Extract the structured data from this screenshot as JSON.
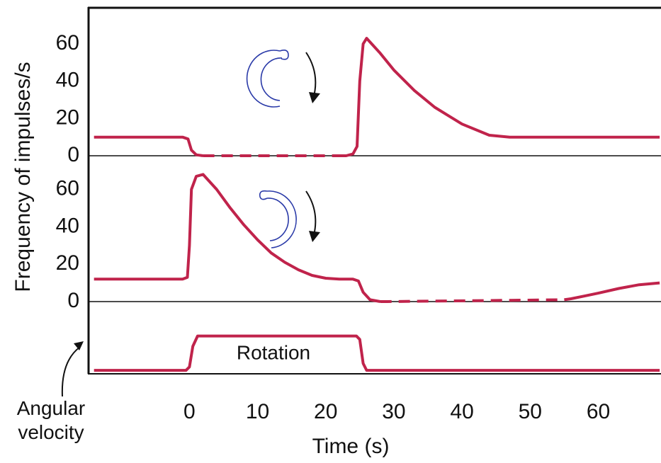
{
  "chart_data": [
    {
      "type": "line",
      "ylabel": "Frequency of impulses/s",
      "xlim": [
        -14.8,
        69.2
      ],
      "ylim": [
        0,
        79
      ],
      "yticks": [
        0,
        20,
        40,
        60
      ],
      "x": [
        -14,
        -1,
        -0.2,
        0.3,
        1,
        2,
        3,
        22,
        23,
        24,
        24.6,
        25,
        25.5,
        26,
        28,
        30,
        33,
        36,
        40,
        44,
        47,
        55,
        69
      ],
      "series": [
        {
          "color": "#c0234b",
          "line_style": "solid",
          "values": [
            10,
            10,
            9,
            3,
            0.5,
            0,
            null,
            0,
            0,
            1,
            5,
            40,
            60,
            63,
            55,
            46,
            35,
            26,
            17,
            11,
            10,
            10,
            10
          ]
        },
        {
          "color": "#c0234b",
          "line_style": "dashed",
          "values": [
            null,
            null,
            null,
            null,
            null,
            0,
            0,
            0,
            null,
            null,
            null,
            null,
            null,
            null,
            null,
            null,
            null,
            null,
            null,
            null,
            null,
            null,
            null
          ]
        }
      ]
    },
    {
      "type": "line",
      "xlim": [
        -14.8,
        69.2
      ],
      "ylim": [
        0,
        78
      ],
      "yticks": [
        0,
        20,
        40,
        60
      ],
      "x": [
        -14,
        -1,
        -0.3,
        0,
        0.3,
        1,
        2,
        4,
        6,
        8,
        10,
        12,
        14,
        16,
        18,
        20,
        22,
        24,
        24.8,
        25.5,
        26.5,
        28,
        29,
        55,
        56,
        58,
        60,
        63,
        66,
        69
      ],
      "series": [
        {
          "color": "#c0234b",
          "line_style": "solid",
          "values": [
            12,
            12,
            13,
            30,
            60,
            67,
            68,
            60,
            50,
            41,
            33,
            26,
            21,
            17,
            14,
            12.5,
            12,
            12,
            11,
            5,
            1,
            0,
            null,
            1,
            1.5,
            3,
            4.5,
            7,
            9,
            10
          ]
        },
        {
          "color": "#c0234b",
          "line_style": "dashed",
          "values": [
            null,
            null,
            null,
            null,
            null,
            null,
            null,
            null,
            null,
            null,
            null,
            null,
            null,
            null,
            null,
            null,
            null,
            null,
            null,
            null,
            null,
            0,
            0,
            1,
            null,
            null,
            null,
            null,
            null,
            null
          ]
        }
      ]
    },
    {
      "type": "line",
      "ylabel": "Angular velocity",
      "xlabel": "Time (s)",
      "annotation": "Rotation",
      "xlim": [
        -14.8,
        69.2
      ],
      "ylim": [
        -0.1,
        2
      ],
      "xticks": [
        0,
        10,
        20,
        30,
        40,
        50,
        60
      ],
      "x": [
        -14,
        -0.5,
        0,
        0.5,
        1.2,
        24.5,
        25,
        25.5,
        26,
        69
      ],
      "series": [
        {
          "color": "#c0234b",
          "line_style": "solid",
          "values": [
            0,
            0,
            0.1,
            0.7,
            1,
            1,
            0.9,
            0.2,
            0,
            0
          ]
        }
      ]
    }
  ]
}
